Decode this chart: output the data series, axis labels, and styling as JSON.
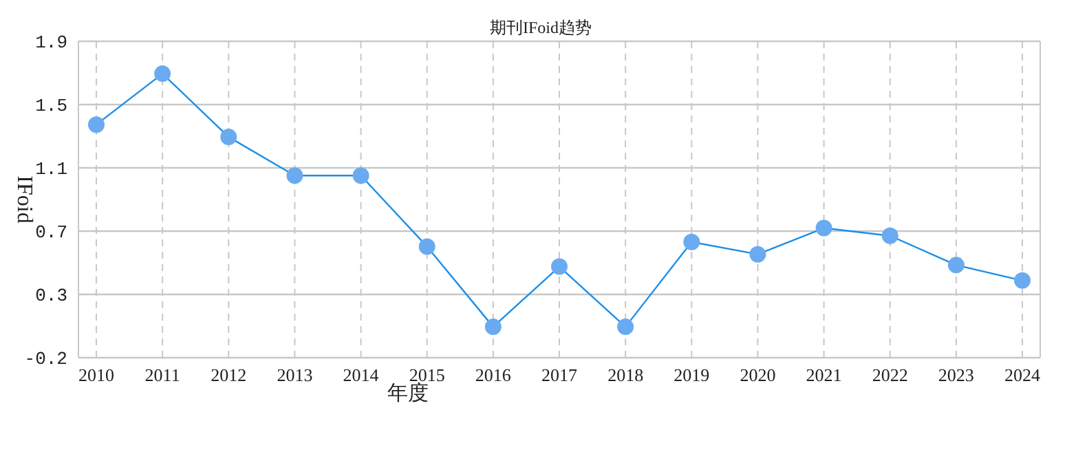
{
  "chart_data": {
    "type": "line",
    "title": "期刊IFoid趋势",
    "xlabel": "年度",
    "ylabel": "IFoid",
    "categories": [
      "2010",
      "2011",
      "2012",
      "2013",
      "2014",
      "2015",
      "2016",
      "2017",
      "2018",
      "2019",
      "2020",
      "2021",
      "2022",
      "2023",
      "2024"
    ],
    "series": [
      {
        "color": "#1b8fe8",
        "values": [
          1.36,
          1.69,
          1.28,
          1.03,
          1.03,
          0.57,
          0.05,
          0.44,
          0.05,
          0.6,
          0.52,
          0.69,
          0.64,
          0.45,
          0.35
        ]
      }
    ],
    "ylim": [
      -0.15,
      1.9
    ],
    "yticks": [
      {
        "value": -0.15,
        "label": "-0.2"
      },
      {
        "value": 0.26,
        "label": "0.3"
      },
      {
        "value": 0.67,
        "label": "0.7"
      },
      {
        "value": 1.08,
        "label": "1.1"
      },
      {
        "value": 1.49,
        "label": "1.5"
      },
      1.9
    ],
    "grid": true,
    "marker": "circle",
    "line_style": "solid"
  }
}
